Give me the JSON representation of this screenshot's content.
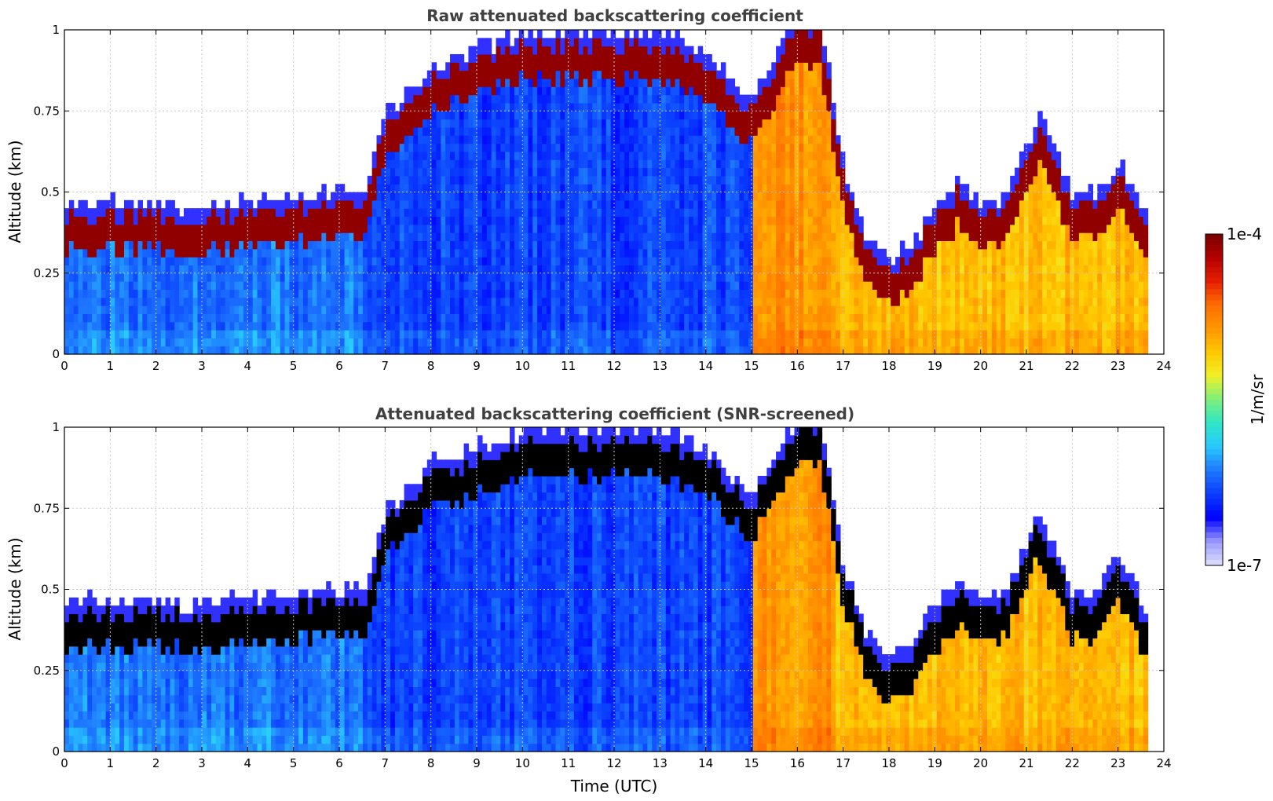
{
  "colors": {
    "colormap": [
      "#e0e0ff",
      "#9a9aff",
      "#0000ff",
      "#0a3cff",
      "#1e78ff",
      "#28c8ff",
      "#2ee6c8",
      "#7cf07c",
      "#f0f028",
      "#ffc800",
      "#ff9600",
      "#ff6e00",
      "#e61e00",
      "#b40000",
      "#780000"
    ],
    "masked_high": "#000000",
    "grid": "#c8c8c8"
  },
  "chart_data": [
    {
      "type": "heatmap",
      "title": "Raw attenuated backscattering coefficient",
      "xlabel": "",
      "ylabel": "Altitude (km)",
      "xlim": [
        0,
        24
      ],
      "ylim": [
        0,
        1
      ],
      "x_ticks": [
        "0",
        "1",
        "2",
        "3",
        "4",
        "5",
        "6",
        "7",
        "8",
        "9",
        "10",
        "11",
        "12",
        "13",
        "14",
        "15",
        "16",
        "17",
        "18",
        "19",
        "20",
        "21",
        "22",
        "23",
        "24"
      ],
      "y_ticks": [
        "0",
        "0.25",
        "0.5",
        "0.75",
        "1"
      ],
      "grid": true,
      "data_end_time": 23.65,
      "boundary_layer_top_km": [
        {
          "time": 0,
          "top": 0.42
        },
        {
          "time": 1,
          "top": 0.43
        },
        {
          "time": 2,
          "top": 0.42
        },
        {
          "time": 3,
          "top": 0.41
        },
        {
          "time": 4,
          "top": 0.44
        },
        {
          "time": 5,
          "top": 0.45
        },
        {
          "time": 6,
          "top": 0.46
        },
        {
          "time": 6.55,
          "top": 0.47
        },
        {
          "time": 7,
          "top": 0.7
        },
        {
          "time": 8,
          "top": 0.85
        },
        {
          "time": 9,
          "top": 0.9
        },
        {
          "time": 10,
          "top": 0.95
        },
        {
          "time": 11,
          "top": 0.95
        },
        {
          "time": 12,
          "top": 0.95
        },
        {
          "time": 13,
          "top": 0.95
        },
        {
          "time": 14,
          "top": 0.9
        },
        {
          "time": 15,
          "top": 0.75
        },
        {
          "time": 16,
          "top": 1.0
        },
        {
          "time": 16.5,
          "top": 1.0
        },
        {
          "time": 17,
          "top": 0.55
        },
        {
          "time": 17.5,
          "top": 0.33
        },
        {
          "time": 18,
          "top": 0.25
        },
        {
          "time": 18.5,
          "top": 0.3
        },
        {
          "time": 19,
          "top": 0.42
        },
        {
          "time": 19.5,
          "top": 0.5
        },
        {
          "time": 20,
          "top": 0.42
        },
        {
          "time": 20.5,
          "top": 0.45
        },
        {
          "time": 21,
          "top": 0.6
        },
        {
          "time": 21.3,
          "top": 0.7
        },
        {
          "time": 22,
          "top": 0.45
        },
        {
          "time": 22.5,
          "top": 0.45
        },
        {
          "time": 23,
          "top": 0.55
        },
        {
          "time": 23.65,
          "top": 0.4
        }
      ]
    },
    {
      "type": "heatmap",
      "title": "Attenuated backscattering coefficient (SNR-screened)",
      "xlabel": "Time (UTC)",
      "ylabel": "Altitude (km)",
      "xlim": [
        0,
        24
      ],
      "ylim": [
        0,
        1
      ],
      "x_ticks": [
        "0",
        "1",
        "2",
        "3",
        "4",
        "5",
        "6",
        "7",
        "8",
        "9",
        "10",
        "11",
        "12",
        "13",
        "14",
        "15",
        "16",
        "17",
        "18",
        "19",
        "20",
        "21",
        "22",
        "23",
        "24"
      ],
      "y_ticks": [
        "0",
        "0.25",
        "0.5",
        "0.75",
        "1"
      ],
      "grid": true,
      "data_end_time": 23.65
    }
  ],
  "colorbar": {
    "label": "1/m/sr",
    "max_label": "1e-4",
    "min_label": "1e-7",
    "scale": "log",
    "range": [
      1e-07,
      0.0001
    ]
  }
}
